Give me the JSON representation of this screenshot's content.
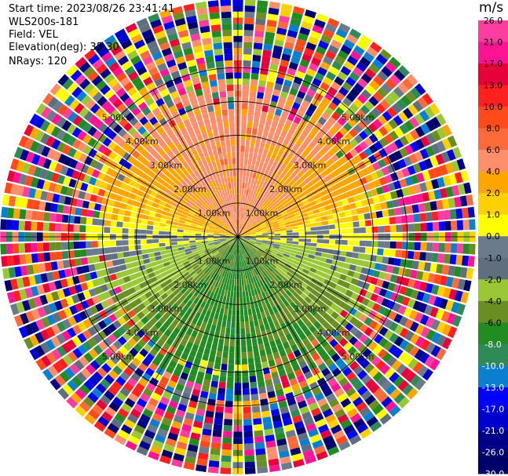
{
  "header": {
    "start_time": "Start time: 2023/08/26 23:41:41",
    "instrument": "WLS200s-181",
    "field": "Field: VEL",
    "elevation": "Elevation(deg): 35.30",
    "nrays": "NRays: 120"
  },
  "colorbar": {
    "unit": "m/s",
    "ticks": [
      "26.0",
      "21.0",
      "17.0",
      "13.0",
      "10.0",
      "8.0",
      "6.0",
      "4.0",
      "2.0",
      "1.0",
      "0.0",
      "-1.0",
      "-2.0",
      "-4.0",
      "-6.0",
      "-8.0",
      "-10.0",
      "-13.0",
      "-17.0",
      "-21.0",
      "-26.0",
      "-30.0"
    ],
    "colors": [
      "#ff3da0",
      "#ff1493",
      "#e8003a",
      "#ff2020",
      "#ff4a1c",
      "#ff6a3a",
      "#ff8f6a",
      "#ffa500",
      "#ffd000",
      "#ffff00",
      "#6b7b8b",
      "#5f6f7f",
      "#9ac834",
      "#6b8e23",
      "#228b22",
      "#2e8b57",
      "#0a7fd0",
      "#0000ff",
      "#0000cd",
      "#000088",
      "#00006b",
      "#000040"
    ]
  },
  "chart_data": {
    "type": "heatmap",
    "projection": "polar PPI",
    "field": "VEL",
    "unit": "m/s",
    "n_rays": 120,
    "ring_labels": [
      "1.00km",
      "2.00km",
      "3.00km",
      "4.00km",
      "5.00km"
    ],
    "max_range_km": 7.0,
    "pattern": {
      "north_half_velocity_ms": [
        1.0,
        6.0
      ],
      "south_half_velocity_ms": [
        -8.0,
        -1.0
      ],
      "noise_beyond_km": 4.4
    }
  }
}
